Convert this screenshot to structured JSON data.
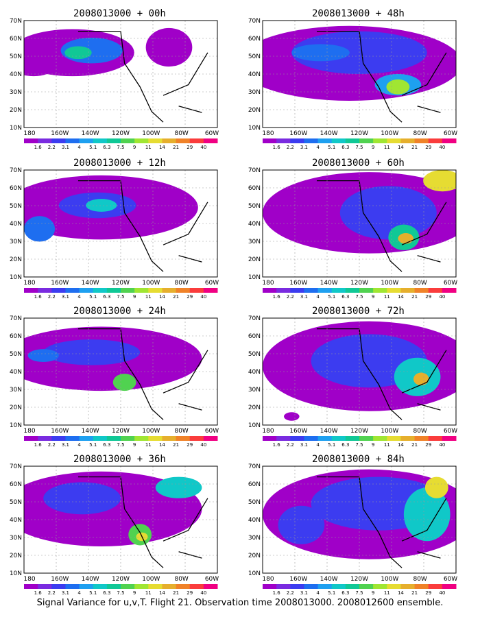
{
  "map": {
    "lat_labels": [
      "70N",
      "60N",
      "50N",
      "40N",
      "30N",
      "20N",
      "10N"
    ],
    "lon_labels": [
      "180",
      "160W",
      "140W",
      "120W",
      "100W",
      "80W",
      "60W"
    ],
    "colorbar": {
      "labels": [
        "1.6",
        "2.2",
        "3.1",
        "4",
        "5.1",
        "6.3",
        "7.5",
        "9",
        "11",
        "14",
        "21",
        "29",
        "40"
      ],
      "colors": [
        "#a000c8",
        "#7a2be0",
        "#3c3cf0",
        "#1e6ef0",
        "#1ea0f0",
        "#10c8c8",
        "#10c896",
        "#50d250",
        "#a0e632",
        "#e6dc32",
        "#e6af2d",
        "#f08228",
        "#fa3c3c",
        "#f00082"
      ]
    },
    "panels": [
      {
        "title": "2008013000 + 00h"
      },
      {
        "title": "2008013000 + 48h"
      },
      {
        "title": "2008013000 + 12h"
      },
      {
        "title": "2008013000 + 60h"
      },
      {
        "title": "2008013000 + 24h"
      },
      {
        "title": "2008013000 + 72h"
      },
      {
        "title": "2008013000 + 36h"
      },
      {
        "title": "2008013000 + 84h"
      }
    ]
  },
  "caption": "Signal Variance for u,v,T. Flight 21. Observation time 2008013000. 2008012600 ensemble."
}
